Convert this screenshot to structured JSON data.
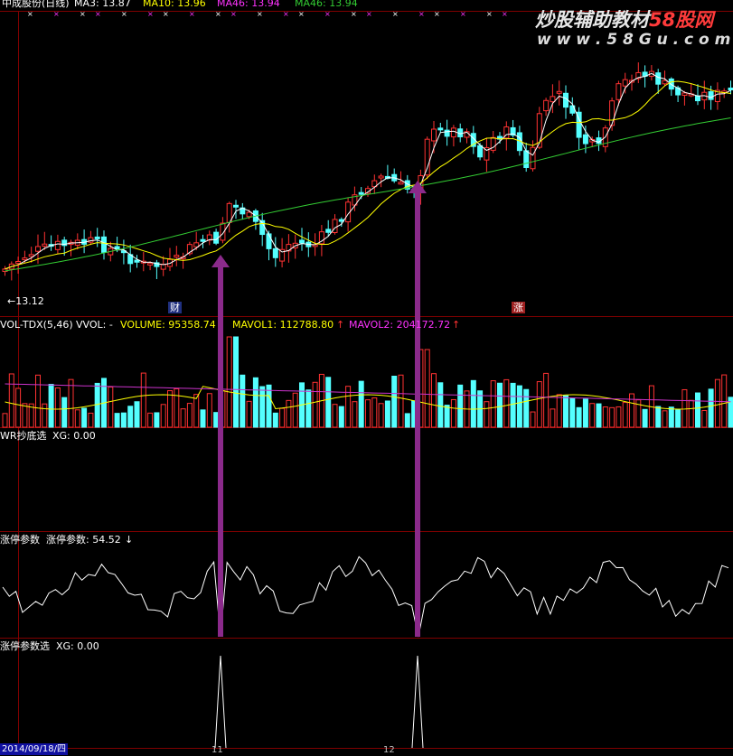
{
  "header": {
    "stock_title": "中成股份(日线)",
    "ma3": "MA3: 13.87",
    "ma10": "MA10: 13.96",
    "ma46a": "MA46: 13.94",
    "ma46b": "MA46: 13.94"
  },
  "watermark": {
    "line1_a": "炒股辅助教材",
    "line1_b": "58股网",
    "line2": "w w w . 5 8 G u . c o m"
  },
  "price_panel": {
    "low_marker": "←13.12",
    "tag_cai": "财",
    "tag_zhang": "涨"
  },
  "vol_panel": {
    "name": "VOL-TDX(5,46)",
    "vvol": "VVOL: -",
    "volume": "VOLUME: 95358.74",
    "mavol1": "MAVOL1: 112788.80",
    "mavol1_arrow": "↑",
    "mavol2": "MAVOL2: 204172.72",
    "mavol2_arrow": "↑"
  },
  "wr_panel": {
    "name": "WR抄底选",
    "xg": "XG: 0.00"
  },
  "zt_panel": {
    "name": "涨停参数",
    "value_label": "涨停参数: 54.52",
    "arrow": "↓"
  },
  "zts_panel": {
    "name": "涨停参数选",
    "xg": "XG: 0.00"
  },
  "bottom_axis": {
    "date": "2014/09/18/四",
    "tick1": "11",
    "tick2": "12"
  },
  "colors": {
    "bg": "#000000",
    "up": "#ff3232",
    "down": "#54ffff",
    "ma3": "#ffffff",
    "ma10": "#ffff00",
    "ma46": "#33cc33",
    "mavol2": "#cc33cc",
    "arrow": "#8b2a8b",
    "divider": "#800000",
    "header_text": "#ffff00"
  }
}
